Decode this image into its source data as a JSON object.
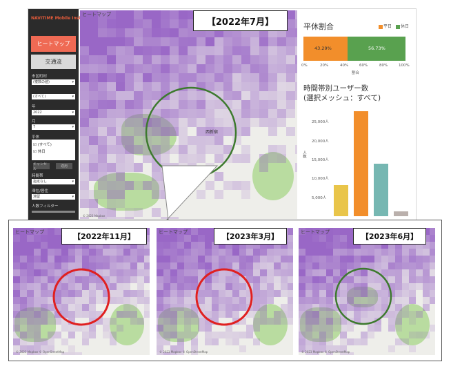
{
  "sidebar": {
    "logo": "NAVITIME Mobile Insight",
    "heatmap_button": "ヒートマップ",
    "traffic_button": "交通流",
    "filters": [
      {
        "label": "市区町村",
        "value": "(複数の値)"
      },
      {
        "label": "",
        "value": "(すべて)"
      },
      {
        "label": "年",
        "value": "2022"
      },
      {
        "label": "月",
        "value": "7"
      }
    ],
    "weekday_label": "平休",
    "checkboxes": [
      "(すべて)",
      "休日"
    ],
    "cancel_button": "キャンセル",
    "apply_button": "適用",
    "time_label": "時間帯",
    "time_value": "指定なし",
    "stay_label": "滞在/居住",
    "stay_value": "滞留",
    "people_filter_label": "人数フィルター"
  },
  "main_map": {
    "title": "ヒートマップ",
    "park_label": "西新宿",
    "copyright": "© 2023 Mapbox"
  },
  "date_labels": {
    "main": "【2022年7月】",
    "nov": "【2022年11月】",
    "mar": "【2023年3月】",
    "jun": "【2023年6月】"
  },
  "small_maps": [
    {
      "title": "ヒートマップ",
      "copyright": "© 2023 Mapbox © OpenStreetMap"
    },
    {
      "title": "ヒートマップ",
      "copyright": "© 2023 Mapbox © OpenStreetMap"
    },
    {
      "title": "ヒートマップ",
      "copyright": "© 2023 Mapbox © OpenStreetMap"
    }
  ],
  "colors": {
    "weekday": "#f28e2b",
    "holiday": "#59a14f",
    "heat_dark": "#8a4fc0",
    "heat_light": "#d9c4ec",
    "highlight_green": "#3d7a2e",
    "highlight_red": "#e02020"
  },
  "ratio_chart": {
    "title": "平休割合",
    "legend": [
      "平日",
      "休日"
    ],
    "weekday_label": "43.29%",
    "holiday_label": "56.73%",
    "axis_ticks": [
      "0%",
      "20%",
      "40%",
      "60%",
      "80%",
      "100%"
    ],
    "axis_title": "割合"
  },
  "chart_data": {
    "type": "bar",
    "title": "時間帯別ユーザー数",
    "subtitle": "(選択メッシュ：すべて)",
    "ylabel": "人数",
    "yticks": [
      "5,000人",
      "10,000人",
      "15,000人",
      "20,000人",
      "25,000人"
    ],
    "ylim": [
      0,
      28000
    ],
    "values": [
      8300,
      27800,
      14000,
      1300
    ],
    "colors": [
      "#e9c54a",
      "#f28e2b",
      "#76b7b2",
      "#bab0ac"
    ],
    "ratio": {
      "weekday": 43.29,
      "holiday": 56.73
    }
  }
}
